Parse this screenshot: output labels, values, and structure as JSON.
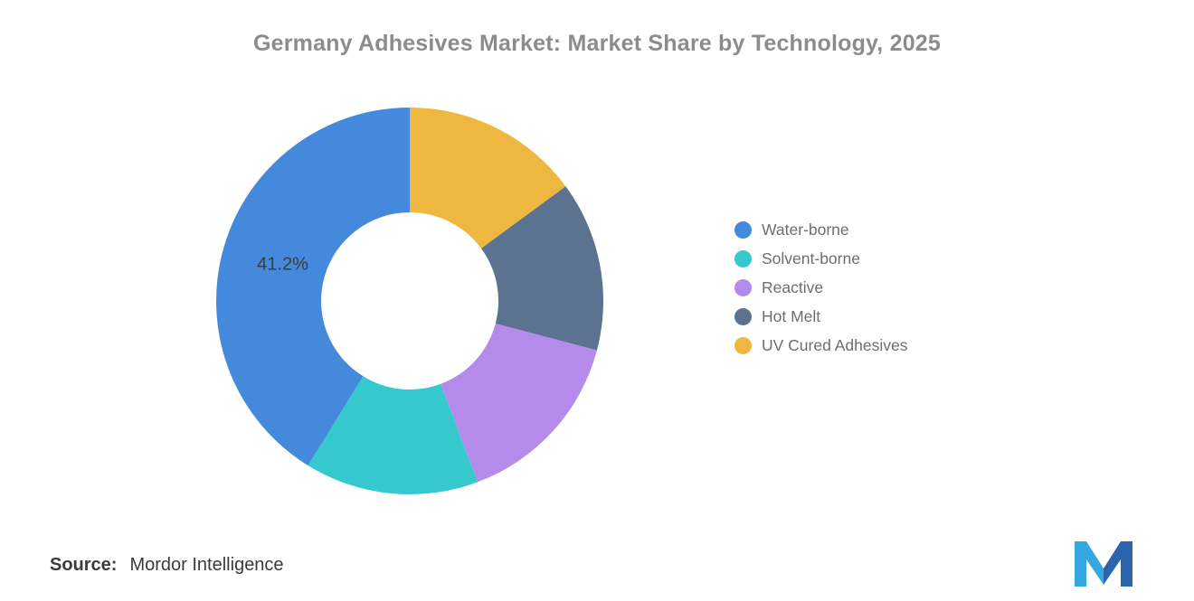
{
  "title": "Germany Adhesives Market: Market Share by Technology, 2025",
  "chart_data": {
    "type": "pie",
    "subtype": "donut",
    "title": "Germany Adhesives Market: Market Share by Technology, 2025",
    "categories": [
      "Water-borne",
      "Solvent-borne",
      "Reactive",
      "Hot Melt",
      "UV Cured Adhesives"
    ],
    "values": [
      41.2,
      14.5,
      15.2,
      14.2,
      14.9
    ],
    "colors": [
      "#4489DB",
      "#35C8CD",
      "#B48BEA",
      "#5B7390",
      "#EEB73F"
    ],
    "data_labels": [
      "41.2%",
      "",
      "",
      "",
      ""
    ],
    "start_angle": "top",
    "direction": "counterclockwise",
    "legend_position": "right",
    "inner_radius_ratio": 0.46
  },
  "source": {
    "label": "Source:",
    "value": "Mordor Intelligence"
  },
  "logo": {
    "name": "mordor-intelligence-logo",
    "color_light": "#35A8E0",
    "color_dark": "#2C64AD"
  }
}
